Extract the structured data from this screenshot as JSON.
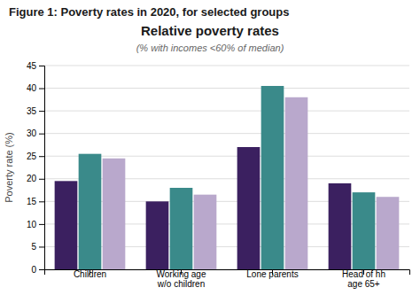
{
  "chart_data": {
    "type": "bar",
    "title": [
      "Figure 1: Poverty rates in 2020, for selected groups",
      "Relative poverty rates"
    ],
    "subtitle": "(% with incomes <60% of median)",
    "y_label": "Poverty rate (%)",
    "categories": [
      "Children",
      "Working age\nw/o children",
      "Lone parents",
      "Head of hh\nage 65+"
    ],
    "series": [
      {
        "color": "#3b2060",
        "values": [
          19.5,
          15.0,
          27.0,
          19.0
        ]
      },
      {
        "color": "#3a8a8a",
        "values": [
          25.5,
          18.0,
          40.5,
          17.0
        ]
      },
      {
        "color": "#b9a8cc",
        "values": [
          24.5,
          16.5,
          38.0,
          16.0
        ]
      }
    ],
    "ylim": [
      0,
      45
    ],
    "yticks": [
      0,
      5,
      10,
      15,
      20,
      25,
      30,
      35,
      40,
      45
    ],
    "grid": true
  }
}
